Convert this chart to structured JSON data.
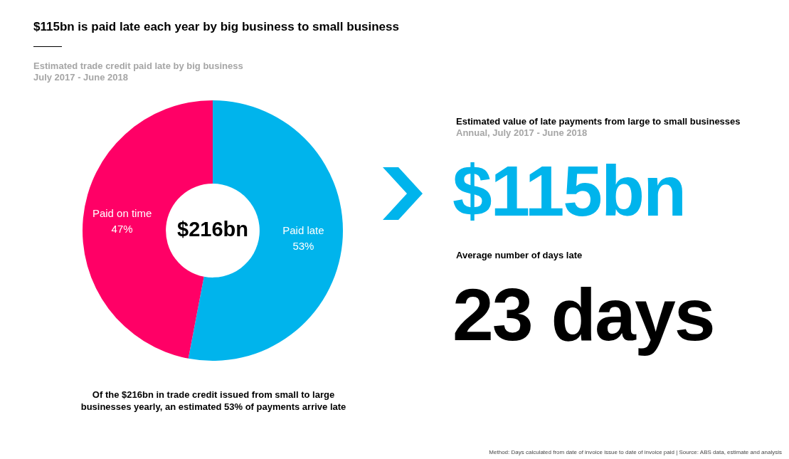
{
  "chart_data": [
    {
      "type": "donut",
      "title": "$115bn is paid late each year by big business to small business",
      "subtitle": "Estimated trade credit paid late by big business\nJuly 2017 - June 2018",
      "categories": [
        "Paid late",
        "Paid on time"
      ],
      "values": [
        53,
        47
      ],
      "colors": [
        "#00b4ec",
        "#ff0066"
      ],
      "value_labels": [
        "53%",
        "47%"
      ],
      "legend": false,
      "annotations": [
        "$216bn",
        "Of the $216bn in trade credit issued from small to large businesses yearly, an estimated 53% of payments arrive late",
        "Method: Days calculated from date of invoice issue to date of invoice paid  |  Source: ABS data, estimate and analysis"
      ]
    },
    {
      "type": "other",
      "title": "Estimated value of late payments from large to small businesses",
      "subtitle": "Annual, July 2017 - June 2018",
      "annotations": [
        "$115bn",
        "Average number of days late",
        "23 days"
      ]
    }
  ]
}
